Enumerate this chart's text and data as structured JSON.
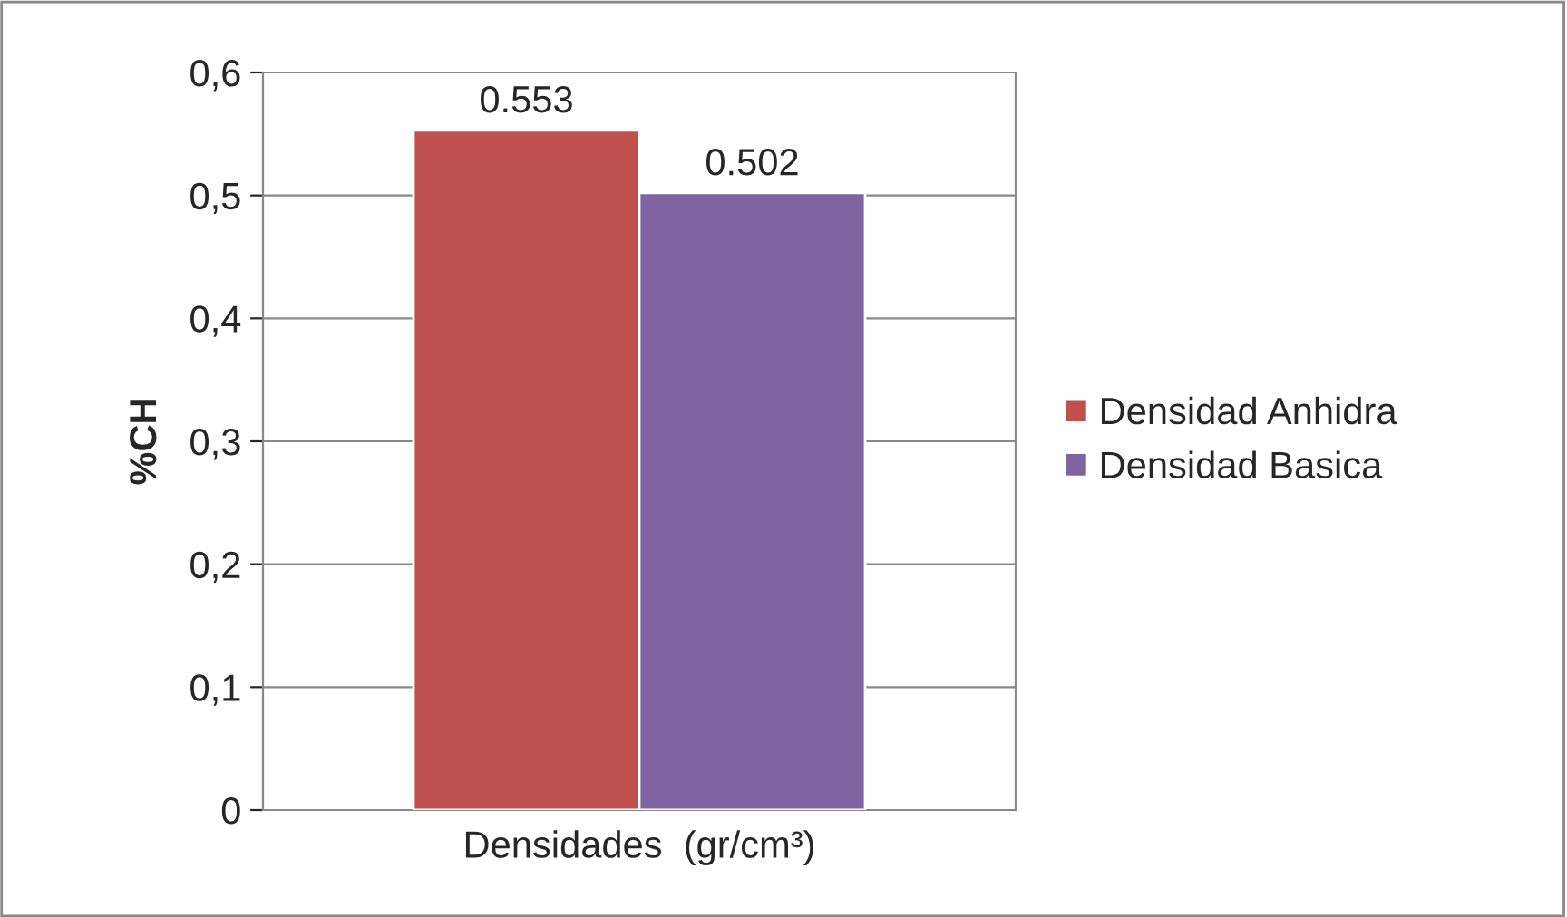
{
  "chart_data": {
    "type": "bar",
    "ylabel": "%CH",
    "categories": [
      "Densidades  (gr/cm³)"
    ],
    "series": [
      {
        "name": "Densidad Anhidra",
        "color": "#c0504d",
        "values": [
          0.553
        ]
      },
      {
        "name": "Densidad Basica",
        "color": "#8064a2",
        "values": [
          0.502
        ]
      }
    ],
    "ylim": [
      0,
      0.6
    ],
    "yticks": [
      {
        "value": 0,
        "label": "0"
      },
      {
        "value": 0.1,
        "label": "0,1"
      },
      {
        "value": 0.2,
        "label": "0,2"
      },
      {
        "value": 0.3,
        "label": "0,3"
      },
      {
        "value": 0.4,
        "label": "0,4"
      },
      {
        "value": 0.5,
        "label": "0,5"
      },
      {
        "value": 0.6,
        "label": "0,6"
      }
    ],
    "grid": "y",
    "legend": "right",
    "data_labels": true
  }
}
